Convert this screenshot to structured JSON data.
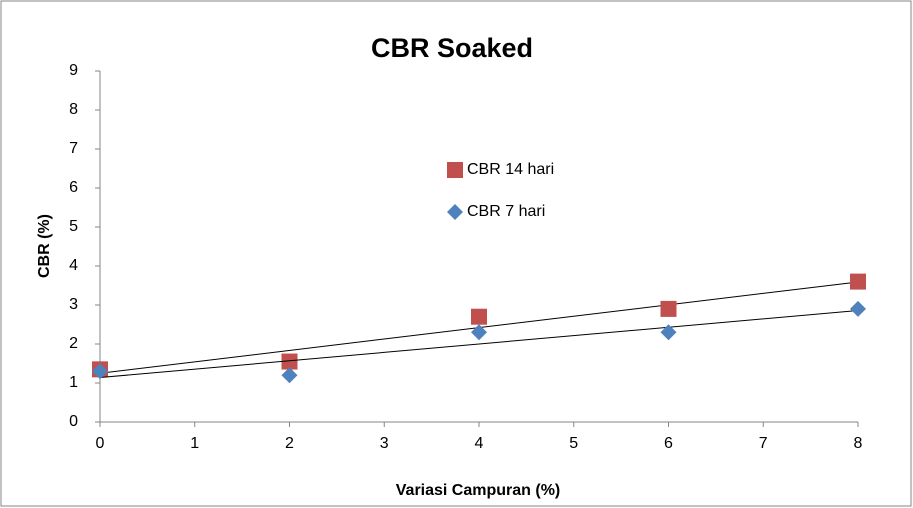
{
  "chart_data": {
    "type": "scatter",
    "title": "CBR Soaked",
    "x_label": "Variasi Campuran (%)",
    "y_label": "CBR (%)",
    "x": [
      0,
      2,
      4,
      6,
      8
    ],
    "series": [
      {
        "name": "CBR 14 hari",
        "color": "#c0504d",
        "marker": "square",
        "values": [
          1.35,
          1.55,
          2.7,
          2.9,
          3.6
        ]
      },
      {
        "name": "CBR 7 hari",
        "color": "#4f81bd",
        "marker": "diamond",
        "values": [
          1.3,
          1.2,
          2.3,
          2.3,
          2.9
        ]
      }
    ],
    "trendline": "linear",
    "xlim": [
      0,
      8
    ],
    "ylim": [
      0,
      9
    ],
    "xticks": [
      0,
      1,
      2,
      3,
      4,
      5,
      6,
      7,
      8
    ],
    "yticks": [
      0,
      1,
      2,
      3,
      4,
      5,
      6,
      7,
      8,
      9
    ],
    "grid": false
  }
}
